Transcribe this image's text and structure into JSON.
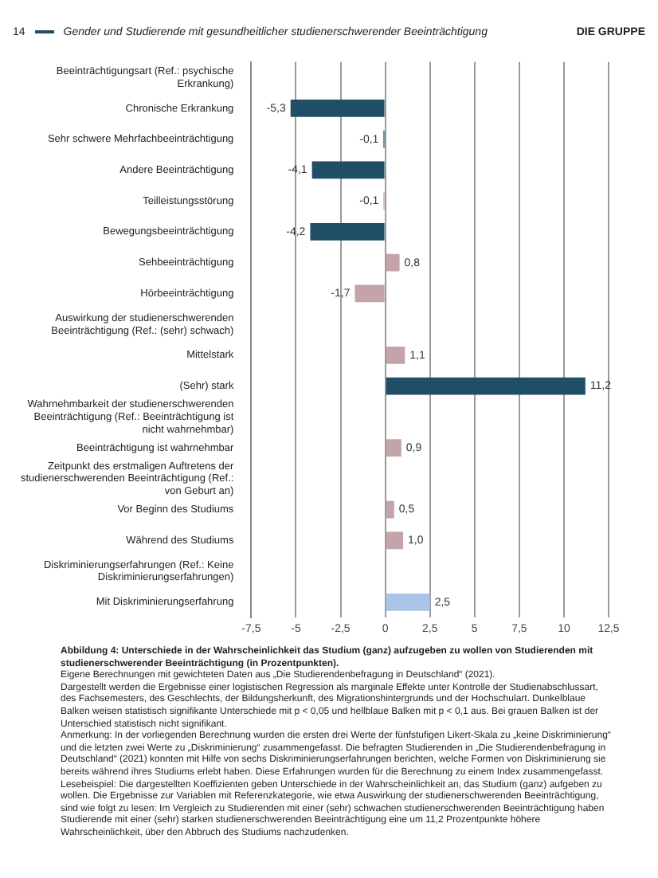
{
  "chart_data": {
    "type": "bar",
    "orientation": "horizontal",
    "categories": [
      "Beeinträchtigungsart (Ref.: psychische Erkrankung)",
      "Chronische Erkrankung",
      "Sehr schwere Mehrfachbeeinträchtigung",
      "Andere Beeinträchtigung",
      "Teilleistungsstörung",
      "Bewegungsbeeinträchtigung",
      "Sehbeeinträchtigung",
      "Hörbeeinträchtigung",
      "Auswirkung der studienerschwerenden Beeinträchtigung (Ref.: (sehr) schwach)",
      "Mittelstark",
      "(Sehr) stark",
      "Wahrnehmbarkeit der studienerschwerenden Beeinträchtigung (Ref.: Beeinträchtigung ist nicht wahrnehmbar)",
      "Beeinträchtigung ist wahrnehmbar",
      "Zeitpunkt des erstmaligen Auftretens der studienerschwerenden Beeinträchtigung (Ref.: von Geburt an)",
      "Vor Beginn des Studiums",
      "Während des Studiums",
      "Diskriminierungserfahrungen (Ref.: Keine Diskriminierungserfahrungen)",
      "Mit Diskriminierungserfahrung"
    ],
    "values": [
      null,
      -5.3,
      -0.1,
      -4.1,
      -0.1,
      -4.2,
      0.8,
      -1.7,
      null,
      1.1,
      11.2,
      null,
      0.9,
      null,
      0.5,
      1.0,
      null,
      2.5
    ],
    "value_labels": [
      null,
      "-5,3",
      "-0,1",
      "-4,1",
      "-0,1",
      "-4,2",
      "0,8",
      "-1,7",
      null,
      "1,1",
      "11,2",
      null,
      "0,9",
      null,
      "0,5",
      "1,0",
      null,
      "2,5"
    ],
    "colors": [
      null,
      "#1f4e66",
      "#1f4e66",
      "#1f4e66",
      "#c4a4a8",
      "#1f4e66",
      "#c4a4a8",
      "#c4a4a8",
      null,
      "#c4a4a8",
      "#1f4e66",
      null,
      "#c4a4a8",
      null,
      "#c4a4a8",
      "#c4a4a8",
      null,
      "#a9c4e8"
    ],
    "xlim": [
      -7.5,
      12.5
    ],
    "xticks": [
      {
        "value": -7.5,
        "label": "-7,5"
      },
      -5,
      {
        "value": -2.5,
        "label": "-2,5"
      },
      0,
      {
        "value": 2.5,
        "label": "2,5"
      },
      5,
      {
        "value": 7.5,
        "label": "7,5"
      },
      10,
      {
        "value": 12.5,
        "label": "12,5"
      }
    ],
    "grid": "x",
    "legend": false,
    "annotations": [
      "14",
      "Gender und Studierende mit gesundheitlicher studienerschwerender Beeinträchtigung",
      "DIE GRUPPE",
      "Abbildung 4: Unterschiede in der Wahrscheinlichkeit das Studium (ganz) aufzugeben zu wollen von Studierenden mit studienerschwerender Beeinträchtigung (in Prozentpunkten).",
      "Eigene Berechnungen mit gewichteten Daten aus „Die Studierendenbefragung in Deutschland“ (2021).",
      "Dargestellt werden die Ergebnisse einer logistischen Regression als marginale Effekte unter Kontrolle der Studienabschlussart, des Fachsemesters, des Geschlechts, der Bildungsherkunft, des Migrationshintergrunds und der Hochschulart. Dunkelblaue Balken weisen statistisch signifikante Unterschiede mit p < 0,05 und hellblaue Balken mit p < 0,1 aus. Bei grauen Balken ist der Unterschied statistisch nicht signifikant.",
      "Anmerkung: In der vorliegenden Berechnung wurden die ersten drei Werte der fünfstufigen Likert-Skala zu „keine Diskriminierung“ und die letzten zwei Werte zu „Diskriminierung“ zusammengefasst. Die befragten Studierenden in „Die Studierendenbefragung in Deutschland“ (2021) konnten mit Hilfe von sechs Diskriminierungserfahrungen berichten, welche Formen von Diskriminierung sie bereits während ihres Studiums erlebt haben. Diese Erfahrungen wurden für die Berechnung zu einem Index zusammengefasst.",
      "Lesebeispiel: Die dargestellten Koeffizienten geben Unterschiede in der Wahrscheinlichkeit an, das Studium (ganz) aufgeben zu wollen. Die Ergebnisse zur Variablen mit Referenzkategorie, wie etwa Auswirkung der studienerschwerenden Beeinträchtigung, sind wie folgt zu lesen: Im Vergleich zu Studierenden mit einer (sehr) schwachen studienerschwerenden Beeinträchtigung haben Studierende mit einer (sehr) starken studienerschwerenden Beeinträchtigung eine um 11,2 Prozentpunkte höhere Wahrscheinlichkeit, über den Abbruch des Studiums nachzudenken."
    ]
  }
}
